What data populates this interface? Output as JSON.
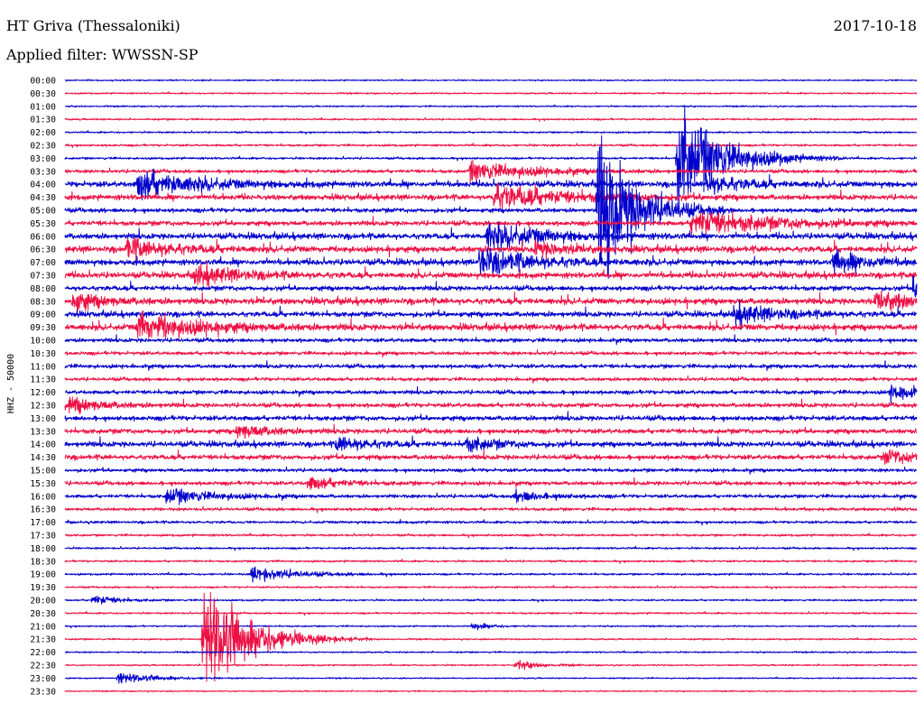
{
  "header": {
    "station": "HT Griva (Thessaloniki)",
    "filter_label": "Applied filter:",
    "filter_value": "WWSSN-SP",
    "date": "2017-10-18"
  },
  "colors": {
    "trace_a": "#0000cc",
    "trace_b": "#ee1144",
    "text": "#000000"
  },
  "chart_data": {
    "type": "line",
    "ylabel": "HHZ - 50000",
    "row_labels": [
      "00:00",
      "00:30",
      "01:00",
      "01:30",
      "02:00",
      "02:30",
      "03:00",
      "03:30",
      "04:00",
      "04:30",
      "05:00",
      "05:30",
      "06:00",
      "06:30",
      "07:00",
      "07:30",
      "08:00",
      "08:30",
      "09:00",
      "09:30",
      "10:00",
      "10:30",
      "11:00",
      "11:30",
      "12:00",
      "12:30",
      "13:00",
      "13:30",
      "14:00",
      "14:30",
      "15:00",
      "15:30",
      "16:00",
      "16:30",
      "17:00",
      "17:30",
      "18:00",
      "18:30",
      "19:00",
      "19:30",
      "20:00",
      "20:30",
      "21:00",
      "21:30",
      "22:00",
      "22:30",
      "23:00",
      "23:30"
    ],
    "row_colors": [
      "blue",
      "red"
    ],
    "noise_level": [
      0.6,
      0.7,
      0.7,
      0.8,
      0.8,
      1.0,
      1.0,
      1.6,
      2.6,
      2.4,
      2.0,
      2.2,
      2.6,
      2.8,
      2.6,
      2.6,
      2.2,
      2.8,
      2.4,
      2.8,
      1.8,
      1.6,
      1.8,
      1.6,
      1.8,
      2.0,
      2.2,
      2.2,
      2.4,
      2.2,
      1.6,
      1.8,
      1.6,
      1.4,
      1.2,
      1.0,
      0.9,
      0.9,
      0.9,
      0.8,
      0.8,
      0.8,
      0.7,
      0.7,
      0.7,
      0.7,
      0.6,
      0.6
    ],
    "events": [
      {
        "row": 8,
        "minute": 2.5,
        "amplitude": 16,
        "duration_min": 1.8
      },
      {
        "row": 7,
        "minute": 14.2,
        "amplitude": 10,
        "duration_min": 2.0
      },
      {
        "row": 9,
        "minute": 15.0,
        "amplitude": 12,
        "duration_min": 2.5
      },
      {
        "row": 10,
        "minute": 18.7,
        "amplitude": 85,
        "duration_min": 1.2
      },
      {
        "row": 6,
        "minute": 21.5,
        "amplitude": 55,
        "duration_min": 1.5
      },
      {
        "row": 11,
        "minute": 22.0,
        "amplitude": 14,
        "duration_min": 2.5
      },
      {
        "row": 8,
        "minute": 22.5,
        "amplitude": 10,
        "duration_min": 1.2
      },
      {
        "row": 12,
        "minute": 14.8,
        "amplitude": 14,
        "duration_min": 1.8
      },
      {
        "row": 14,
        "minute": 14.5,
        "amplitude": 14,
        "duration_min": 1.8
      },
      {
        "row": 13,
        "minute": 16.5,
        "amplitude": 8,
        "duration_min": 1.0
      },
      {
        "row": 13,
        "minute": 2.1,
        "amplitude": 10,
        "duration_min": 1.5
      },
      {
        "row": 15,
        "minute": 4.5,
        "amplitude": 10,
        "duration_min": 1.5
      },
      {
        "row": 19,
        "minute": 2.5,
        "amplitude": 14,
        "duration_min": 2.0
      },
      {
        "row": 18,
        "minute": 23.5,
        "amplitude": 10,
        "duration_min": 1.5
      },
      {
        "row": 17,
        "minute": 0.2,
        "amplitude": 10,
        "duration_min": 1.0
      },
      {
        "row": 16,
        "minute": 29.8,
        "amplitude": 12,
        "duration_min": 0.8
      },
      {
        "row": 14,
        "minute": 27.0,
        "amplitude": 12,
        "duration_min": 1.2
      },
      {
        "row": 17,
        "minute": 28.5,
        "amplitude": 10,
        "duration_min": 1.2
      },
      {
        "row": 24,
        "minute": 29.0,
        "amplitude": 8,
        "duration_min": 1.2
      },
      {
        "row": 25,
        "minute": 0.1,
        "amplitude": 9,
        "duration_min": 1.0
      },
      {
        "row": 27,
        "minute": 6.0,
        "amplitude": 8,
        "duration_min": 1.0
      },
      {
        "row": 28,
        "minute": 9.5,
        "amplitude": 8,
        "duration_min": 1.0
      },
      {
        "row": 28,
        "minute": 14.0,
        "amplitude": 8,
        "duration_min": 1.0
      },
      {
        "row": 29,
        "minute": 28.8,
        "amplitude": 8,
        "duration_min": 1.0
      },
      {
        "row": 31,
        "minute": 8.5,
        "amplitude": 7,
        "duration_min": 1.0
      },
      {
        "row": 32,
        "minute": 3.5,
        "amplitude": 8,
        "duration_min": 1.5
      },
      {
        "row": 32,
        "minute": 15.8,
        "amplitude": 6,
        "duration_min": 1.0
      },
      {
        "row": 38,
        "minute": 6.5,
        "amplitude": 8,
        "duration_min": 1.5
      },
      {
        "row": 40,
        "minute": 0.9,
        "amplitude": 6,
        "duration_min": 0.8
      },
      {
        "row": 43,
        "minute": 4.8,
        "amplitude": 60,
        "duration_min": 1.5
      },
      {
        "row": 45,
        "minute": 15.8,
        "amplitude": 5,
        "duration_min": 0.8
      },
      {
        "row": 46,
        "minute": 1.8,
        "amplitude": 6,
        "duration_min": 1.2
      },
      {
        "row": 42,
        "minute": 14.3,
        "amplitude": 5,
        "duration_min": 0.5
      }
    ]
  }
}
